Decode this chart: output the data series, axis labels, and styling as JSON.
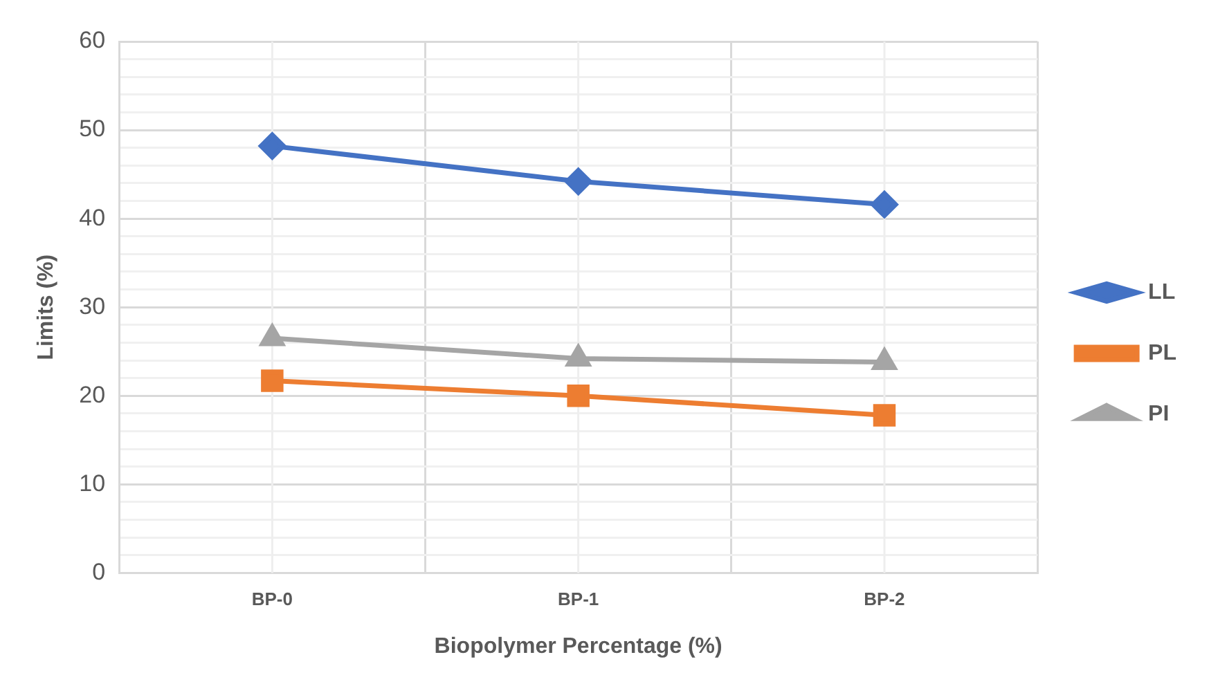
{
  "chart_data": {
    "type": "line",
    "xlabel": "Biopolymer Percentage (%)",
    "ylabel": "Limits (%)",
    "categories": [
      "BP-0",
      "BP-1",
      "BP-2"
    ],
    "series": [
      {
        "name": "LL",
        "color": "#4472c4",
        "marker": "diamond",
        "values": [
          48.2,
          44.2,
          41.6
        ]
      },
      {
        "name": "PL",
        "color": "#ed7d31",
        "marker": "square",
        "values": [
          21.7,
          20.0,
          17.8
        ]
      },
      {
        "name": "PI",
        "color": "#a5a5a5",
        "marker": "triangle",
        "values": [
          26.5,
          24.2,
          23.8
        ]
      }
    ],
    "ylim": [
      0,
      60
    ],
    "yticks": [
      0,
      {
        "value": 2,
        "label": null
      },
      {
        "value": 4,
        "label": null
      },
      {
        "value": 6,
        "label": null
      },
      {
        "value": 8,
        "label": null
      },
      10,
      {
        "value": 12,
        "label": null
      },
      {
        "value": 14,
        "label": null
      },
      {
        "value": 16,
        "label": null
      },
      {
        "value": 18,
        "label": null
      },
      20,
      {
        "value": 22,
        "label": null
      },
      {
        "value": 24,
        "label": null
      },
      {
        "value": 26,
        "label": null
      },
      {
        "value": 28,
        "label": null
      },
      30,
      {
        "value": 32,
        "label": null
      },
      {
        "value": 34,
        "label": null
      },
      {
        "value": 36,
        "label": null
      },
      {
        "value": 38,
        "label": null
      },
      40,
      {
        "value": 42,
        "label": null
      },
      {
        "value": 44,
        "label": null
      },
      {
        "value": 46,
        "label": null
      },
      {
        "value": 48,
        "label": null
      },
      50,
      {
        "value": 52,
        "label": null
      },
      {
        "value": 54,
        "label": null
      },
      {
        "value": 56,
        "label": null
      },
      {
        "value": 58,
        "label": null
      },
      60
    ],
    "grid": true,
    "legend": "right",
    "line_style": "solid"
  }
}
